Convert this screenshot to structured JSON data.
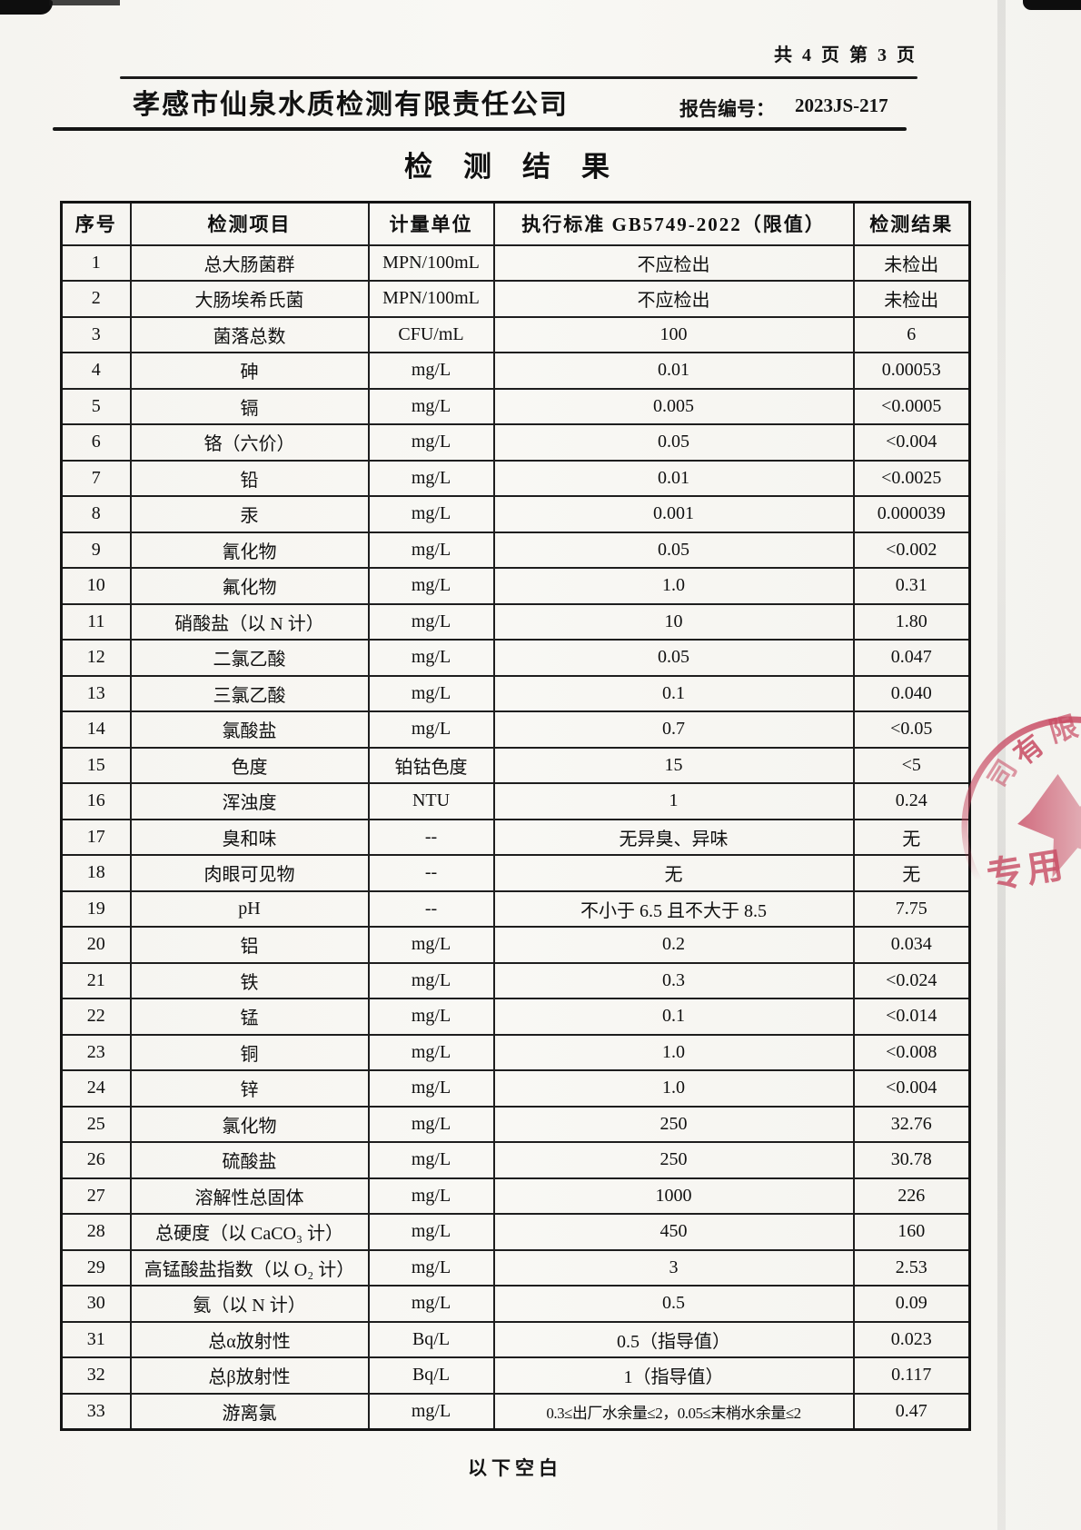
{
  "page": {
    "page_indicator": "共 4 页  第 3 页",
    "company_name": "孝感市仙泉水质检测有限责任公司",
    "report_label": "报告编号：",
    "report_number": "2023JS-217",
    "doc_title": "检测结果",
    "footer_note": "以下空白"
  },
  "table": {
    "headers": [
      "序号",
      "检测项目",
      "计量单位",
      "执行标准 GB5749-2022（限值）",
      "检测结果"
    ],
    "rows": [
      [
        "1",
        "总大肠菌群",
        "MPN/100mL",
        "不应检出",
        "未检出"
      ],
      [
        "2",
        "大肠埃希氏菌",
        "MPN/100mL",
        "不应检出",
        "未检出"
      ],
      [
        "3",
        "菌落总数",
        "CFU/mL",
        "100",
        "6"
      ],
      [
        "4",
        "砷",
        "mg/L",
        "0.01",
        "0.00053"
      ],
      [
        "5",
        "镉",
        "mg/L",
        "0.005",
        "<0.0005"
      ],
      [
        "6",
        "铬（六价）",
        "mg/L",
        "0.05",
        "<0.004"
      ],
      [
        "7",
        "铅",
        "mg/L",
        "0.01",
        "<0.0025"
      ],
      [
        "8",
        "汞",
        "mg/L",
        "0.001",
        "0.000039"
      ],
      [
        "9",
        "氰化物",
        "mg/L",
        "0.05",
        "<0.002"
      ],
      [
        "10",
        "氟化物",
        "mg/L",
        "1.0",
        "0.31"
      ],
      [
        "11",
        "硝酸盐（以 N 计）",
        "mg/L",
        "10",
        "1.80"
      ],
      [
        "12",
        "二氯乙酸",
        "mg/L",
        "0.05",
        "0.047"
      ],
      [
        "13",
        "三氯乙酸",
        "mg/L",
        "0.1",
        "0.040"
      ],
      [
        "14",
        "氯酸盐",
        "mg/L",
        "0.7",
        "<0.05"
      ],
      [
        "15",
        "色度",
        "铂钴色度",
        "15",
        "<5"
      ],
      [
        "16",
        "浑浊度",
        "NTU",
        "1",
        "0.24"
      ],
      [
        "17",
        "臭和味",
        "--",
        "无异臭、异味",
        "无"
      ],
      [
        "18",
        "肉眼可见物",
        "--",
        "无",
        "无"
      ],
      [
        "19",
        "pH",
        "--",
        "不小于 6.5 且不大于 8.5",
        "7.75"
      ],
      [
        "20",
        "铝",
        "mg/L",
        "0.2",
        "0.034"
      ],
      [
        "21",
        "铁",
        "mg/L",
        "0.3",
        "<0.024"
      ],
      [
        "22",
        "锰",
        "mg/L",
        "0.1",
        "<0.014"
      ],
      [
        "23",
        "铜",
        "mg/L",
        "1.0",
        "<0.008"
      ],
      [
        "24",
        "锌",
        "mg/L",
        "1.0",
        "<0.004"
      ],
      [
        "25",
        "氯化物",
        "mg/L",
        "250",
        "32.76"
      ],
      [
        "26",
        "硫酸盐",
        "mg/L",
        "250",
        "30.78"
      ],
      [
        "27",
        "溶解性总固体",
        "mg/L",
        "1000",
        "226"
      ],
      [
        "28",
        "总硬度（以 CaCO₃ 计）",
        "mg/L",
        "450",
        "160"
      ],
      [
        "29",
        "高锰酸盐指数（以 O₂ 计）",
        "mg/L",
        "3",
        "2.53"
      ],
      [
        "30",
        "氨（以 N 计）",
        "mg/L",
        "0.5",
        "0.09"
      ],
      [
        "31",
        "总α放射性",
        "Bq/L",
        "0.5（指导值）",
        "0.023"
      ],
      [
        "32",
        "总β放射性",
        "Bq/L",
        "1（指导值）",
        "0.117"
      ],
      [
        "33",
        "游离氯",
        "mg/L",
        "0.3≤出厂水余量≤2，0.05≤末梢水余量≤2",
        "0.47"
      ]
    ]
  },
  "stamp": {
    "color": "#c84b63",
    "arc_char_1": "司",
    "arc_char_2": "有",
    "arc_char_3": "限",
    "bottom_text": "专用"
  }
}
